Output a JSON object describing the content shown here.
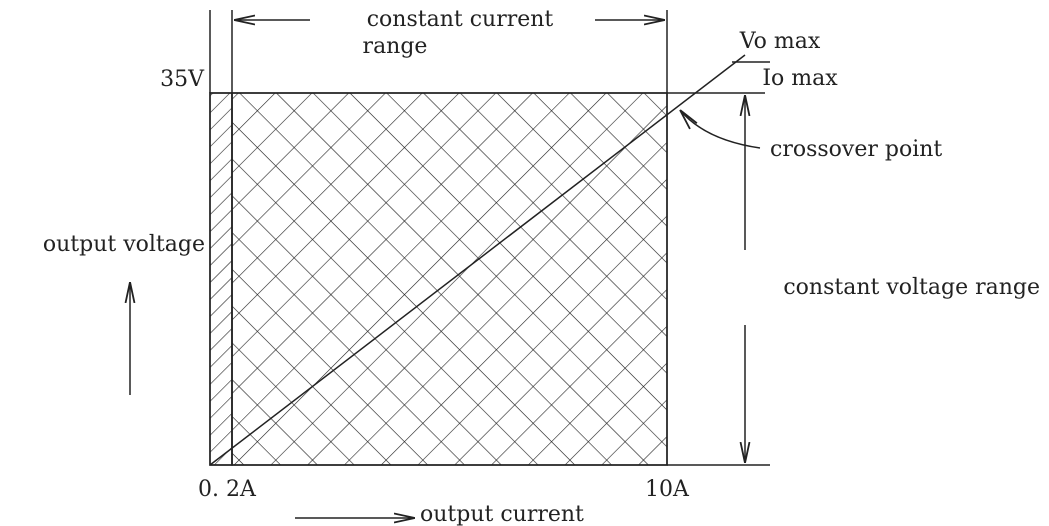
{
  "title_top": [
    "constant current",
    "range"
  ],
  "ratio": {
    "numerator": "Vo max",
    "denominator": "Io max"
  },
  "y_axis": {
    "max_label": "35V",
    "label": "output voltage"
  },
  "x_axis": {
    "min_label": "0. 2A",
    "max_label": "10A",
    "label": "output current"
  },
  "annotations": {
    "crossover": "crossover point",
    "voltage_range": "constant voltage range"
  }
}
